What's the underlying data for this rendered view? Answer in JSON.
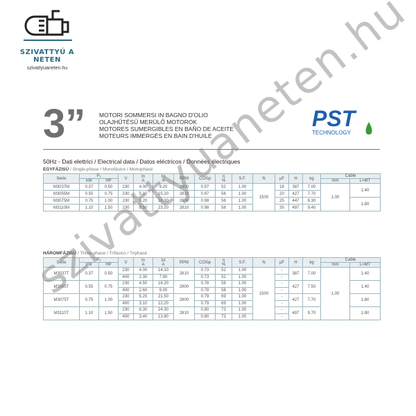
{
  "logo": {
    "brand": "SZIVATTYÚ A NETEN",
    "url": "szivattyuaneten.hu",
    "icon": "pump-icon"
  },
  "header": {
    "size": "3”",
    "titles": [
      "MOTORI SOMMERSI IN BAGNO D'OLIO",
      "OLAJHŰTÉSŰ MERÜLŐ MOTOROK",
      "MOTORES SUMERGIBLES EN BAÑO DE ACEITE",
      "MOTEURS IMMERGÉS EN BAIN D'HUILE"
    ],
    "pst_logo": "PST",
    "pst_tech": "TECHNOLOGY"
  },
  "electrical": "50Hz - Dati elettrici / Electrical data / Datos eléctricos / Données électriques",
  "single_phase": {
    "bold": "EGYFÁZISÚ",
    "rest": " / Single-phase / Monofásico / Monophasé"
  },
  "three_phase": {
    "bold": "HÁROMFÁZISÚ",
    "rest": " / Three-phase / Trifásico / Triphasé"
  },
  "columns": {
    "serie": "Serie",
    "p2": "P₂",
    "kw": "kW",
    "hp": "HP",
    "v": "V",
    "in": "In",
    "in_u": "A",
    "ist": "Ist",
    "ist_u": "A",
    "rpm": "RPM",
    "cos": "COSφ",
    "eta": "η",
    "eta_u": "%",
    "sf": "S.F.",
    "n": "N",
    "uf": "µF",
    "h": "H",
    "kg": "kg",
    "cable": "Cable",
    "mm": "mm",
    "l": "L=MT"
  },
  "single_rows": [
    {
      "serie": "M3037M",
      "kw": "0.37",
      "hp": "0.50",
      "v": "230",
      "in": "4.00",
      "ist": "9.20",
      "rpm": "2800",
      "cos": "0.97",
      "eta": "52",
      "sf": "1.00",
      "uf": "16",
      "h": "387",
      "kg": "7.00"
    },
    {
      "serie": "M3055M",
      "kw": "0.55",
      "hp": "0.75",
      "v": "230",
      "in": "5.10",
      "ist": "15.20",
      "rpm": "2810",
      "cos": "0.97",
      "eta": "56",
      "sf": "1.00",
      "uf": "20",
      "h": "427",
      "kg": "7.70"
    },
    {
      "serie": "M3075M",
      "kw": "0.75",
      "hp": "1.00",
      "v": "230",
      "in": "6.20",
      "ist": "18.30",
      "rpm": "2800",
      "cos": "0.98",
      "eta": "56",
      "sf": "1.00",
      "uf": "25",
      "h": "447",
      "kg": "8.30"
    },
    {
      "serie": "M3110M",
      "kw": "1.10",
      "hp": "1.50",
      "v": "230",
      "in": "8.50",
      "ist": "23.20",
      "rpm": "2810",
      "cos": "0.98",
      "eta": "58",
      "sf": "1.00",
      "uf": "35",
      "h": "497",
      "kg": "9.40"
    }
  ],
  "single_shared": {
    "n": "1500",
    "mm": "1.00",
    "l": [
      "1.40",
      "1.80"
    ]
  },
  "three_rows": [
    {
      "serie": "M3037T",
      "kw": "0.37",
      "hp": "0.50",
      "rpm": "2810",
      "h": "387",
      "kg": "7.00",
      "l": "1.40",
      "sub": [
        {
          "v": "230",
          "in": "4.00",
          "ist": "14.10",
          "cos": "0.73",
          "eta": "52",
          "sf": "1.00",
          "uf": "-"
        },
        {
          "v": "400",
          "in": "2.30",
          "ist": "7.90",
          "cos": "0.73",
          "eta": "52",
          "sf": "1.00",
          "uf": "-"
        }
      ]
    },
    {
      "serie": "M3055T",
      "kw": "0.55",
      "hp": "0.75",
      "rpm": "2800",
      "h": "427",
      "kg": "7.50",
      "l": "1.40",
      "sub": [
        {
          "v": "230",
          "in": "4.50",
          "ist": "16.20",
          "cos": "0.78",
          "eta": "58",
          "sf": "1.00",
          "uf": "-"
        },
        {
          "v": "400",
          "in": "2.60",
          "ist": "9.00",
          "cos": "0.78",
          "eta": "58",
          "sf": "1.00",
          "uf": "-"
        }
      ]
    },
    {
      "serie": "M3075T",
      "kw": "0.75",
      "hp": "1.00",
      "rpm": "2800",
      "h": "427",
      "kg": "7.70",
      "l": "1.80",
      "sub": [
        {
          "v": "230",
          "in": "5.20",
          "ist": "21.50",
          "cos": "0.79",
          "eta": "69",
          "sf": "1.00",
          "uf": "-"
        },
        {
          "v": "400",
          "in": "3.10",
          "ist": "12.20",
          "cos": "0.79",
          "eta": "69",
          "sf": "1.00",
          "uf": "-"
        }
      ]
    },
    {
      "serie": "M3110T",
      "kw": "1.10",
      "hp": "1.50",
      "rpm": "2810",
      "h": "497",
      "kg": "9.70",
      "l": "1.80",
      "sub": [
        {
          "v": "230",
          "in": "6.30",
          "ist": "24.30",
          "cos": "0.80",
          "eta": "73",
          "sf": "1.00",
          "uf": "-"
        },
        {
          "v": "400",
          "in": "3.40",
          "ist": "13.80",
          "cos": "0.80",
          "eta": "73",
          "sf": "1.00",
          "uf": "-"
        }
      ]
    }
  ],
  "three_shared": {
    "n": "1500",
    "mm": "1.00"
  },
  "watermark": "szivattyuaneten.hu",
  "colors": {
    "brand": "#2d6a85",
    "header_bg": "#e7eef1",
    "pst_blue": "#1f5fa8",
    "pst_green": "#3a9a3a"
  }
}
